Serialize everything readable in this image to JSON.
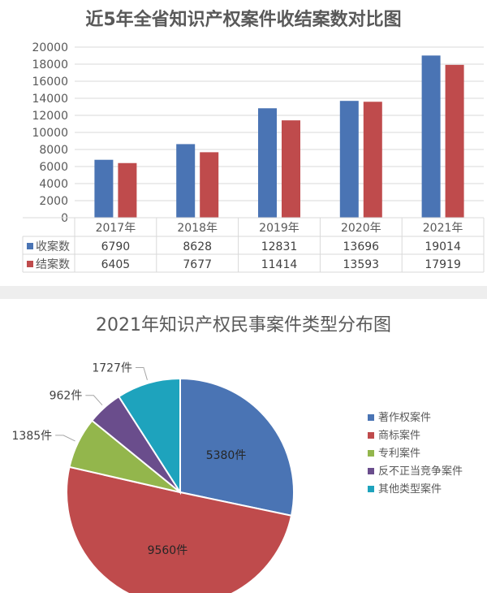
{
  "chart_data": [
    {
      "type": "bar",
      "title": "近5年全省知识产权案件收结案数对比图",
      "categories": [
        "2017年",
        "2018年",
        "2019年",
        "2020年",
        "2021年"
      ],
      "series": [
        {
          "name": "收案数",
          "values": [
            6790,
            8628,
            12831,
            13696,
            19014
          ],
          "color": "#4a74b4"
        },
        {
          "name": "结案数",
          "values": [
            6405,
            7677,
            11414,
            13593,
            17919
          ],
          "color": "#bf4b4c"
        }
      ],
      "ylim": [
        0,
        20000
      ],
      "yticks": [
        "0",
        "2000",
        "4000",
        "6000",
        "8000",
        "10000",
        "12000",
        "14000",
        "16000",
        "18000",
        "20000"
      ],
      "grid": true,
      "legend": "data-table"
    },
    {
      "type": "pie",
      "title": "2021年知识产权民事案件类型分布图",
      "slices": [
        {
          "name": "著作权案件",
          "value": 5380,
          "label": "5380件",
          "color": "#4a74b4"
        },
        {
          "name": "商标案件",
          "value": 9560,
          "label": "9560件",
          "color": "#bf4b4c"
        },
        {
          "name": "专利案件",
          "value": 1385,
          "label": "1385件",
          "color": "#93b64c"
        },
        {
          "name": "反不正当竞争案件",
          "value": 962,
          "label": "962件",
          "color": "#6a4d8c"
        },
        {
          "name": "其他类型案件",
          "value": 1727,
          "label": "1727件",
          "color": "#1ea3bd"
        }
      ],
      "legend": "right"
    }
  ]
}
